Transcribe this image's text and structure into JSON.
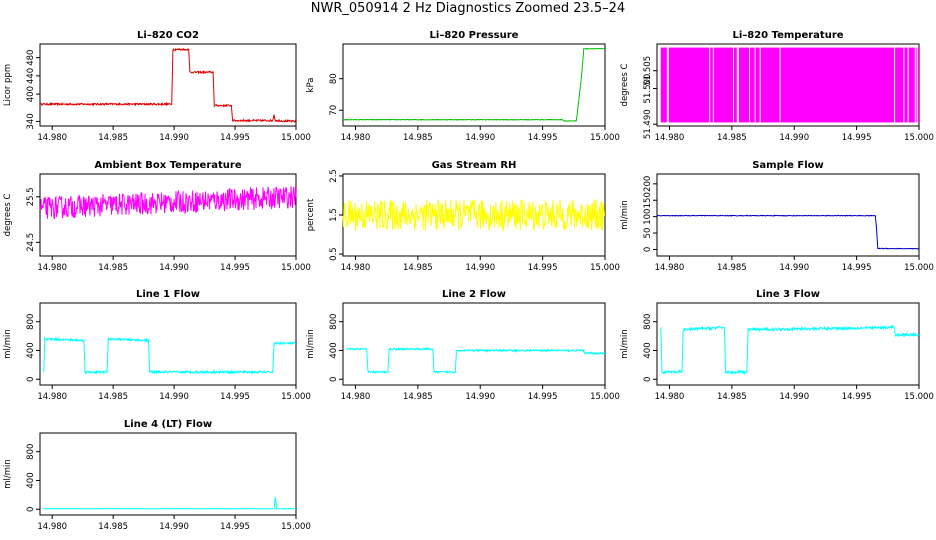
{
  "figure_title": "NWR_050914  2 Hz Diagnostics Zoomed 23.5–24",
  "chart_data": [
    {
      "type": "line",
      "title": "Li–820 CO2",
      "ylabel": "Licor ppm",
      "color": "#e00000",
      "xlim": [
        14.979,
        15.0
      ],
      "ylim": [
        330,
        510
      ],
      "xticks": [
        "14.980",
        "14.985",
        "14.990",
        "14.995",
        "15.000"
      ],
      "xtick_values": [
        14.98,
        14.985,
        14.99,
        14.995,
        15.0
      ],
      "yticks": [
        "340",
        "400",
        "440",
        "480"
      ],
      "ytick_values": [
        340,
        400,
        440,
        480
      ],
      "series": [
        {
          "x": [
            14.979,
            14.9898,
            14.9899,
            14.9912,
            14.9913,
            14.9932,
            14.9933,
            14.9947,
            14.9948,
            14.9981,
            14.9982,
            14.9983,
            15.0
          ],
          "y": [
            378,
            378,
            498,
            498,
            448,
            448,
            375,
            375,
            342,
            342,
            355,
            342,
            340
          ]
        }
      ],
      "noise": 2
    },
    {
      "type": "line",
      "title": "Li–820 Pressure",
      "ylabel": "kPa",
      "color": "#00c000",
      "xlim": [
        14.979,
        15.0
      ],
      "ylim": [
        65,
        91
      ],
      "xticks": [
        "14.980",
        "14.985",
        "14.990",
        "14.995",
        "15.000"
      ],
      "xtick_values": [
        14.98,
        14.985,
        14.99,
        14.995,
        15.0
      ],
      "yticks": [
        "70",
        "80"
      ],
      "ytick_values": [
        70,
        80
      ],
      "series": [
        {
          "x": [
            14.979,
            14.9966,
            14.9967,
            14.9977,
            14.9981,
            14.9983,
            15.0
          ],
          "y": [
            67,
            67,
            66.6,
            66.6,
            80,
            89.5,
            89.5
          ]
        }
      ],
      "noise": 0.1
    },
    {
      "type": "line",
      "title": "Li–820 Temperature",
      "ylabel": "degrees C",
      "color": "#ff00ff",
      "xlim": [
        14.979,
        15.0
      ],
      "ylim": [
        51.4895,
        51.5125
      ],
      "xticks": [
        "14.980",
        "14.985",
        "14.990",
        "14.995",
        "15.000"
      ],
      "xtick_values": [
        14.98,
        14.985,
        14.99,
        14.995,
        15.0
      ],
      "yticks": [
        "51.490",
        "51.500",
        "51.505"
      ],
      "ytick_values": [
        51.49,
        51.5,
        51.505
      ],
      "series": [
        {
          "x": [
            14.979,
            15.0
          ],
          "y": [
            51.4905,
            51.5115
          ]
        }
      ],
      "fill_band": true
    },
    {
      "type": "line",
      "title": "Ambient Box Temperature",
      "ylabel": "degrees C",
      "color": "#ff00ff",
      "xlim": [
        14.979,
        15.0
      ],
      "ylim": [
        24.2,
        26.0
      ],
      "xticks": [
        "14.980",
        "14.985",
        "14.990",
        "14.995",
        "15.000"
      ],
      "xtick_values": [
        14.98,
        14.985,
        14.99,
        14.995,
        15.0
      ],
      "yticks": [
        "24.5",
        "25.5"
      ],
      "ytick_values": [
        24.5,
        25.5
      ],
      "series": [
        {
          "x": [
            14.979,
            15.0
          ],
          "y": [
            25.25,
            25.5
          ]
        }
      ],
      "noise": 0.25
    },
    {
      "type": "line",
      "title": "Gas Stream RH",
      "ylabel": "percent",
      "color": "#ffff00",
      "xlim": [
        14.979,
        15.0
      ],
      "ylim": [
        0.45,
        2.55
      ],
      "xticks": [
        "14.980",
        "14.985",
        "14.990",
        "14.995",
        "15.000"
      ],
      "xtick_values": [
        14.98,
        14.985,
        14.99,
        14.995,
        15.0
      ],
      "yticks": [
        "0.5",
        "1.5",
        "2.5"
      ],
      "ytick_values": [
        0.5,
        1.5,
        2.5
      ],
      "series": [
        {
          "x": [
            14.979,
            15.0
          ],
          "y": [
            1.5,
            1.5
          ]
        }
      ],
      "noise": 0.4
    },
    {
      "type": "line",
      "title": "Sample Flow",
      "ylabel": "ml/min",
      "color": "#0000c0",
      "xlim": [
        14.979,
        15.0
      ],
      "ylim": [
        -20,
        230
      ],
      "xticks": [
        "14.980",
        "14.985",
        "14.990",
        "14.995",
        "15.000"
      ],
      "xtick_values": [
        14.98,
        14.985,
        14.99,
        14.995,
        15.0
      ],
      "yticks": [
        "0",
        "50",
        "100",
        "150",
        "200"
      ],
      "ytick_values": [
        0,
        50,
        100,
        150,
        200
      ],
      "series": [
        {
          "x": [
            14.979,
            14.9965,
            14.9966,
            14.9967,
            15.0
          ],
          "y": [
            103,
            103,
            60,
            3,
            2
          ]
        }
      ],
      "noise": 1
    },
    {
      "type": "line",
      "title": "Line 1 Flow",
      "ylabel": "ml/min",
      "color": "#00ffff",
      "xlim": [
        14.979,
        15.0
      ],
      "ylim": [
        -80,
        1060
      ],
      "xticks": [
        "14.980",
        "14.985",
        "14.990",
        "14.995",
        "15.000"
      ],
      "xtick_values": [
        14.98,
        14.985,
        14.99,
        14.995,
        15.0
      ],
      "yticks": [
        "0",
        "400",
        "800"
      ],
      "ytick_values": [
        0,
        400,
        800
      ],
      "series": [
        {
          "x": [
            14.9793,
            14.9794,
            14.9826,
            14.9827,
            14.9845,
            14.9846,
            14.9879,
            14.988,
            14.9981,
            14.9982,
            15.0
          ],
          "y": [
            100,
            560,
            540,
            100,
            100,
            560,
            540,
            100,
            100,
            500,
            500
          ]
        }
      ],
      "noise": 15
    },
    {
      "type": "line",
      "title": "Line 2 Flow",
      "ylabel": "ml/min",
      "color": "#00ffff",
      "xlim": [
        14.979,
        15.0
      ],
      "ylim": [
        -80,
        1060
      ],
      "xticks": [
        "14.980",
        "14.985",
        "14.990",
        "14.995",
        "15.000"
      ],
      "xtick_values": [
        14.98,
        14.985,
        14.99,
        14.995,
        15.0
      ],
      "yticks": [
        "0",
        "400",
        "800"
      ],
      "ytick_values": [
        0,
        400,
        800
      ],
      "series": [
        {
          "x": [
            14.9793,
            14.9809,
            14.981,
            14.9826,
            14.9827,
            14.9862,
            14.9863,
            14.988,
            14.9881,
            14.9983,
            14.9984,
            15.0
          ],
          "y": [
            420,
            420,
            100,
            100,
            420,
            420,
            100,
            100,
            400,
            400,
            360,
            360
          ]
        }
      ],
      "noise": 12
    },
    {
      "type": "line",
      "title": "Line 3 Flow",
      "ylabel": "ml/min",
      "color": "#00ffff",
      "xlim": [
        14.979,
        15.0
      ],
      "ylim": [
        -80,
        1060
      ],
      "xticks": [
        "14.980",
        "14.985",
        "14.990",
        "14.995",
        "15.000"
      ],
      "xtick_values": [
        14.98,
        14.985,
        14.99,
        14.995,
        15.0
      ],
      "yticks": [
        "0",
        "400",
        "800"
      ],
      "ytick_values": [
        0,
        400,
        800
      ],
      "series": [
        {
          "x": [
            14.9793,
            14.9794,
            14.9795,
            14.981,
            14.9811,
            14.9843,
            14.9844,
            14.9845,
            14.9862,
            14.9863,
            14.998,
            14.9981,
            15.0
          ],
          "y": [
            720,
            100,
            100,
            100,
            690,
            720,
            720,
            100,
            100,
            690,
            720,
            620,
            620
          ]
        }
      ],
      "noise": 20
    },
    {
      "type": "line",
      "title": "Line 4 (LT) Flow",
      "ylabel": "ml/min",
      "color": "#00ffff",
      "xlim": [
        14.979,
        15.0
      ],
      "ylim": [
        -80,
        1060
      ],
      "xticks": [
        "14.980",
        "14.985",
        "14.990",
        "14.995",
        "15.000"
      ],
      "xtick_values": [
        14.98,
        14.985,
        14.99,
        14.995,
        15.0
      ],
      "yticks": [
        "0",
        "400",
        "800"
      ],
      "ytick_values": [
        0,
        400,
        800
      ],
      "series": [
        {
          "x": [
            14.9793,
            14.9982,
            14.9983,
            14.9984,
            15.0
          ],
          "y": [
            8,
            8,
            170,
            8,
            8
          ]
        }
      ],
      "noise": 2
    }
  ]
}
